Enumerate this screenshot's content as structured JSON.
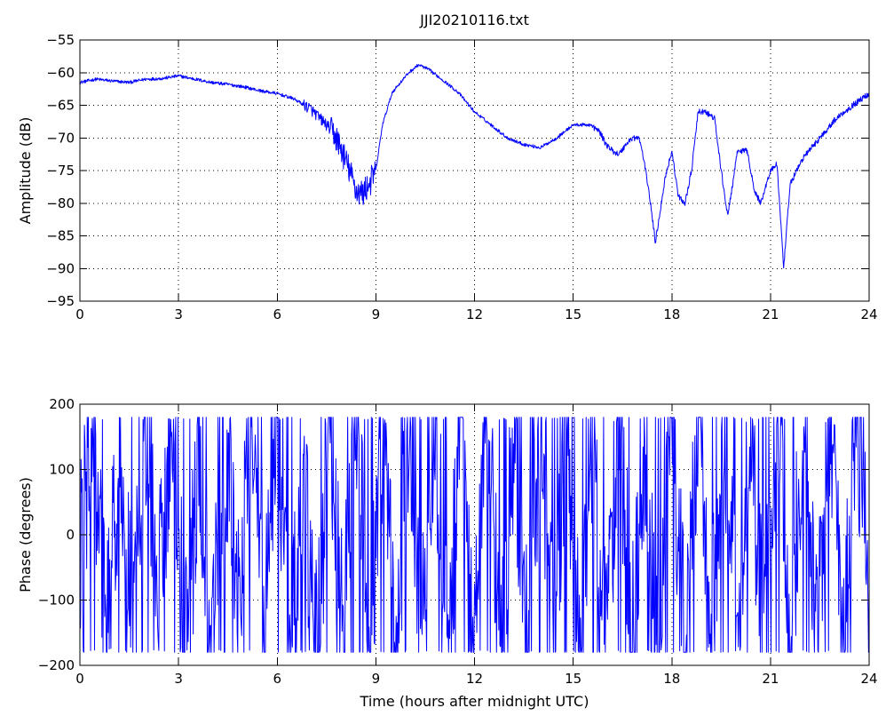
{
  "chart_data": [
    {
      "type": "line",
      "title": "JJI20210116.txt",
      "xlabel": "",
      "ylabel": "Amplitude (dB)",
      "xlim": [
        0,
        24
      ],
      "ylim": [
        -95,
        -55
      ],
      "xticks": [
        0,
        3,
        6,
        9,
        12,
        15,
        18,
        21,
        24
      ],
      "yticks": [
        -55,
        -60,
        -65,
        -70,
        -75,
        -80,
        -85,
        -90,
        -95
      ],
      "grid": true,
      "color": "#0000ff",
      "series": [
        {
          "x": [
            0,
            0.5,
            1,
            1.5,
            2,
            2.5,
            3,
            3.5,
            4,
            4.5,
            5,
            5.5,
            6,
            6.5,
            7,
            7.5,
            7.8,
            8,
            8.2,
            8.4,
            8.6,
            8.8,
            9,
            9.2,
            9.5,
            10,
            10.3,
            10.6,
            11,
            11.5,
            12,
            12.5,
            13,
            13.5,
            14,
            14.5,
            15,
            15.5,
            15.8,
            16,
            16.2,
            16.4,
            16.6,
            16.8,
            17,
            17.1,
            17.3,
            17.5,
            17.8,
            18,
            18.2,
            18.4,
            18.6,
            18.8,
            19,
            19.3,
            19.5,
            19.7,
            20,
            20.3,
            20.5,
            20.7,
            21,
            21.2,
            21.4,
            21.6,
            22,
            22.5,
            23,
            23.5,
            24
          ],
          "y": [
            -61.5,
            -61,
            -61.3,
            -61.5,
            -61,
            -60.9,
            -60.5,
            -61,
            -61.5,
            -61.8,
            -62.2,
            -62.8,
            -63.2,
            -64,
            -65.5,
            -68,
            -70,
            -72.5,
            -75,
            -78,
            -78.5,
            -77,
            -75,
            -68,
            -63,
            -60,
            -58.8,
            -59.5,
            -61,
            -63,
            -66,
            -68,
            -70,
            -71,
            -71.5,
            -70,
            -68,
            -68,
            -69,
            -71,
            -72,
            -72.5,
            -71,
            -70,
            -70,
            -72,
            -78,
            -86,
            -76,
            -72,
            -79,
            -80,
            -75,
            -66,
            -66,
            -67,
            -75,
            -82,
            -72,
            -72,
            -78,
            -80,
            -75,
            -74,
            -90,
            -77,
            -73,
            -70,
            -67,
            -65,
            -63.2
          ]
        }
      ]
    },
    {
      "type": "line",
      "title": "",
      "xlabel": "Time (hours after midnight UTC)",
      "ylabel": "Phase (degrees)",
      "xlim": [
        0,
        24
      ],
      "ylim": [
        -200,
        200
      ],
      "xticks": [
        0,
        3,
        6,
        9,
        12,
        15,
        18,
        21,
        24
      ],
      "yticks": [
        200,
        100,
        0,
        -100,
        -200
      ],
      "grid": true,
      "color": "#0000ff",
      "phase_range": [
        -180,
        180
      ],
      "series": [
        {
          "x": [
            0,
            0.4,
            0.8,
            1.2,
            1.6,
            2,
            2.4,
            2.8,
            3.2,
            3.6,
            4,
            4.4,
            4.8,
            5.2,
            5.6,
            6,
            6.4,
            6.8,
            7.2,
            7.6,
            8,
            8.4,
            8.8,
            9.2,
            9.6,
            10,
            10.4,
            10.8,
            11.2,
            11.6,
            12,
            12.4,
            12.8,
            13.2,
            13.6,
            14,
            14.4,
            14.8,
            15.2,
            15.6,
            16,
            16.4,
            16.8,
            17.2,
            17.6,
            18,
            18.4,
            18.8,
            19.2,
            19.6,
            20,
            20.4,
            20.8,
            21.2,
            21.6,
            22,
            22.4,
            22.8,
            23.2,
            23.6,
            24
          ],
          "y": [
            -20,
            175,
            -175,
            120,
            -150,
            170,
            -60,
            175,
            -180,
            90,
            -170,
            160,
            -120,
            175,
            -100,
            170,
            -170,
            60,
            -175,
            170,
            -160,
            175,
            -175,
            140,
            -180,
            175,
            -170,
            178,
            -178,
            175,
            -175,
            178,
            -178,
            170,
            -175,
            178,
            -180,
            175,
            -178,
            160,
            -170,
            178,
            -150,
            120,
            -175,
            178,
            -178,
            170,
            -160,
            178,
            -175,
            160,
            -180,
            178,
            -175,
            170,
            -178,
            175,
            -170,
            178,
            -10
          ]
        }
      ]
    }
  ]
}
